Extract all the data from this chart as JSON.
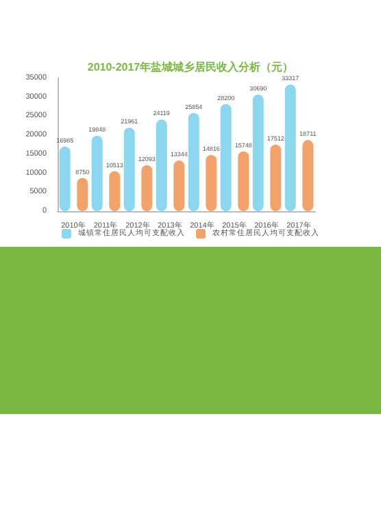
{
  "chart_data": {
    "type": "bar",
    "title": "2010-2017年盐城城乡居民收入分析（元）",
    "categories": [
      "2010年",
      "2011年",
      "2012年",
      "2013年",
      "2014年",
      "2015年",
      "2016年",
      "2017年"
    ],
    "series": [
      {
        "name": "城镇常住居民人均可支配收入",
        "color": "#8dd6f0",
        "values": [
          16985,
          19848,
          21961,
          24119,
          25854,
          28200,
          30690,
          33317
        ]
      },
      {
        "name": "农村常住居民人均可支配收入",
        "color": "#f2a36b",
        "values": [
          8750,
          10513,
          12093,
          13344,
          14816,
          15748,
          17512,
          18711
        ]
      }
    ],
    "ylim": [
      0,
      35000
    ],
    "yticks": [
      0,
      5000,
      10000,
      15000,
      20000,
      25000,
      30000,
      35000
    ],
    "data_labels": true,
    "legend": "bottom",
    "grid": false
  }
}
